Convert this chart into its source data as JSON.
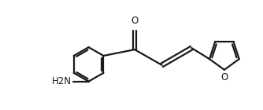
{
  "bg_color": "#ffffff",
  "line_color": "#1a1a1a",
  "line_width": 1.6,
  "font_size": 8.5,
  "label_O": "O",
  "label_NH2": "H2N",
  "label_O_furan": "O",
  "figsize": [
    3.34,
    1.4
  ],
  "dpi": 100
}
